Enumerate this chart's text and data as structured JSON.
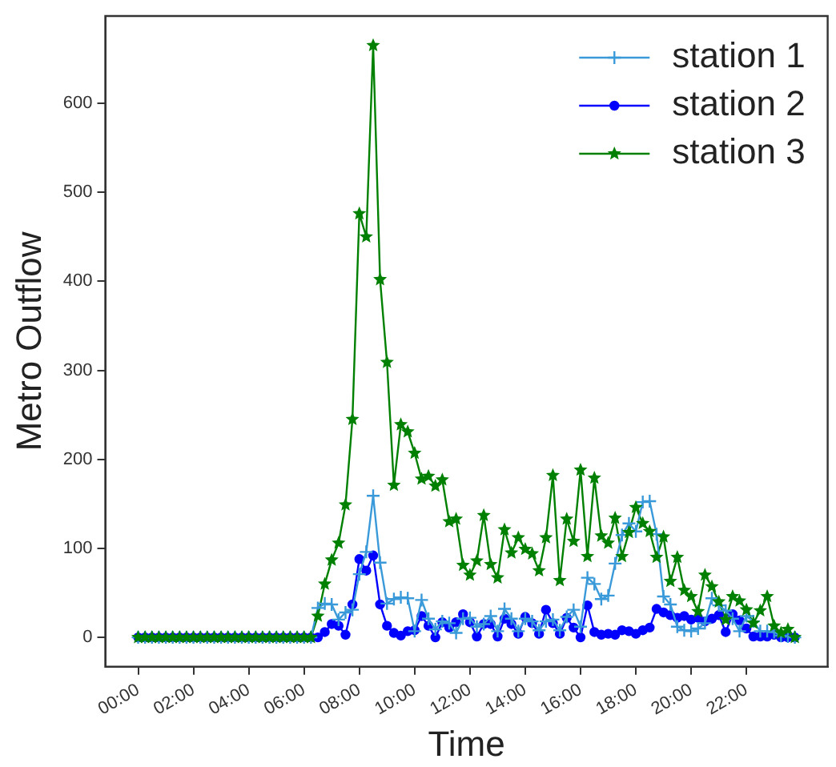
{
  "chart_data": {
    "type": "line",
    "xlabel": "Time",
    "ylabel": "Metro Outflow",
    "x": [
      0,
      0.25,
      0.5,
      0.75,
      1,
      1.25,
      1.5,
      1.75,
      2,
      2.25,
      2.5,
      2.75,
      3,
      3.25,
      3.5,
      3.75,
      4,
      4.25,
      4.5,
      4.75,
      5,
      5.25,
      5.5,
      5.75,
      6,
      6.25,
      6.5,
      6.75,
      7,
      7.25,
      7.5,
      7.75,
      8,
      8.25,
      8.5,
      8.75,
      9,
      9.25,
      9.5,
      9.75,
      10,
      10.25,
      10.5,
      10.75,
      11,
      11.25,
      11.5,
      11.75,
      12,
      12.25,
      12.5,
      12.75,
      13,
      13.25,
      13.5,
      13.75,
      14,
      14.25,
      14.5,
      14.75,
      15,
      15.25,
      15.5,
      15.75,
      16,
      16.25,
      16.5,
      16.75,
      17,
      17.25,
      17.5,
      17.75,
      18,
      18.25,
      18.5,
      18.75,
      19,
      19.25,
      19.5,
      19.75,
      20,
      20.25,
      20.5,
      20.75,
      21,
      21.25,
      21.5,
      21.75,
      22,
      22.25,
      22.5,
      22.75,
      23,
      23.25,
      23.5,
      23.75
    ],
    "series": [
      {
        "name": "station 1",
        "color": "#3a9ad9",
        "marker": "cross",
        "values": [
          0,
          0,
          0,
          0,
          0,
          0,
          0,
          0,
          0,
          0,
          0,
          0,
          0,
          0,
          0,
          0,
          0,
          0,
          0,
          0,
          0,
          0,
          0,
          0,
          0,
          0,
          33,
          38,
          37,
          20,
          28,
          31,
          71,
          96,
          159,
          84,
          38,
          43,
          45,
          44,
          7,
          42,
          21,
          9,
          18,
          16,
          5,
          21,
          22,
          12,
          15,
          24,
          7,
          32,
          21,
          7,
          21,
          18,
          8,
          18,
          20,
          8,
          23,
          31,
          12,
          67,
          60,
          43,
          47,
          83,
          115,
          128,
          119,
          152,
          153,
          116,
          46,
          37,
          12,
          8,
          7,
          10,
          16,
          44,
          36,
          30,
          21,
          7,
          24,
          18,
          7,
          7,
          6,
          2,
          1,
          0
        ]
      },
      {
        "name": "station 2",
        "color": "#0000ff",
        "marker": "circle",
        "values": [
          0,
          0,
          0,
          0,
          0,
          0,
          0,
          0,
          0,
          0,
          0,
          0,
          0,
          0,
          0,
          0,
          0,
          0,
          0,
          0,
          0,
          0,
          0,
          0,
          0,
          0,
          0,
          6,
          15,
          13,
          3,
          37,
          88,
          75,
          92,
          37,
          13,
          5,
          2,
          7,
          8,
          24,
          13,
          0,
          17,
          11,
          17,
          26,
          17,
          1,
          15,
          15,
          1,
          21,
          15,
          4,
          23,
          16,
          4,
          31,
          16,
          4,
          22,
          11,
          0,
          36,
          6,
          3,
          4,
          3,
          8,
          7,
          4,
          8,
          11,
          32,
          28,
          25,
          22,
          24,
          20,
          22,
          18,
          21,
          25,
          6,
          26,
          19,
          10,
          1,
          1,
          1,
          3,
          0,
          0,
          0
        ]
      },
      {
        "name": "station 3",
        "color": "#008000",
        "marker": "star",
        "values": [
          0,
          0,
          0,
          0,
          0,
          0,
          0,
          0,
          0,
          0,
          0,
          0,
          0,
          0,
          0,
          0,
          0,
          0,
          0,
          0,
          0,
          0,
          0,
          0,
          0,
          0,
          24,
          60,
          87,
          106,
          149,
          245,
          476,
          450,
          665,
          402,
          309,
          171,
          239,
          231,
          207,
          178,
          181,
          170,
          177,
          130,
          133,
          81,
          70,
          86,
          137,
          82,
          67,
          121,
          95,
          112,
          99,
          94,
          75,
          112,
          182,
          64,
          133,
          108,
          188,
          91,
          179,
          114,
          106,
          134,
          91,
          118,
          146,
          128,
          119,
          90,
          113,
          63,
          90,
          53,
          46,
          29,
          70,
          57,
          40,
          20,
          46,
          41,
          31,
          16,
          30,
          46,
          13,
          5,
          9,
          0
        ]
      }
    ],
    "xlim": [
      -1.1875,
      24.9375
    ],
    "xticks": [
      {
        "value": 0,
        "label": "00:00"
      },
      {
        "value": 2,
        "label": "02:00"
      },
      {
        "value": 4,
        "label": "04:00"
      },
      {
        "value": 6,
        "label": "06:00"
      },
      {
        "value": 8,
        "label": "08:00"
      },
      {
        "value": 10,
        "label": "10:00"
      },
      {
        "value": 12,
        "label": "12:00"
      },
      {
        "value": 14,
        "label": "14:00"
      },
      {
        "value": 16,
        "label": "16:00"
      },
      {
        "value": 18,
        "label": "18:00"
      },
      {
        "value": 20,
        "label": "20:00"
      },
      {
        "value": 22,
        "label": "22:00"
      }
    ],
    "ylim": [
      -33,
      698
    ],
    "yticks": [
      0,
      100,
      200,
      300,
      400,
      500,
      600
    ],
    "grid": false,
    "legend": "top right",
    "line_style": "solid"
  }
}
